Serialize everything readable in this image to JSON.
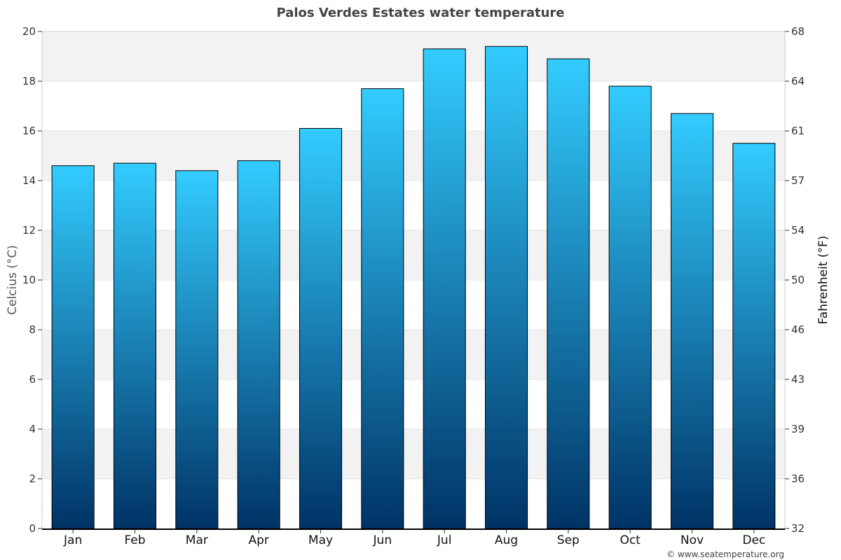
{
  "chart_data": {
    "type": "bar",
    "title": "Palos Verdes Estates water temperature",
    "categories": [
      "Jan",
      "Feb",
      "Mar",
      "Apr",
      "May",
      "Jun",
      "Jul",
      "Aug",
      "Sep",
      "Oct",
      "Nov",
      "Dec"
    ],
    "series": [
      {
        "values": [
          14.6,
          14.7,
          14.4,
          14.8,
          16.1,
          17.7,
          19.3,
          19.4,
          18.9,
          17.8,
          16.7,
          15.5
        ]
      }
    ],
    "ylabel": "Celcius (°C)",
    "y2label": "Fahrenheit (°F)",
    "ylim": [
      0,
      20
    ],
    "yticks": [
      "0",
      "2",
      "4",
      "6",
      "8",
      "10",
      "12",
      "14",
      "16",
      "18",
      "20"
    ],
    "y2lim": [
      32,
      68
    ],
    "y2ticks": [
      "32",
      "36",
      "39",
      "43",
      "46",
      "50",
      "54",
      "57",
      "61",
      "64",
      "68"
    ],
    "grid": true,
    "legend": "none",
    "credit": "© www.seatemperature.org",
    "colors": {
      "bar_top": "#33ccff",
      "bar_bottom": "#003366",
      "bar_outline": "#000000",
      "band_alt": "#f2f2f2",
      "grid": "#e6e6e6",
      "title": "#444444"
    }
  }
}
